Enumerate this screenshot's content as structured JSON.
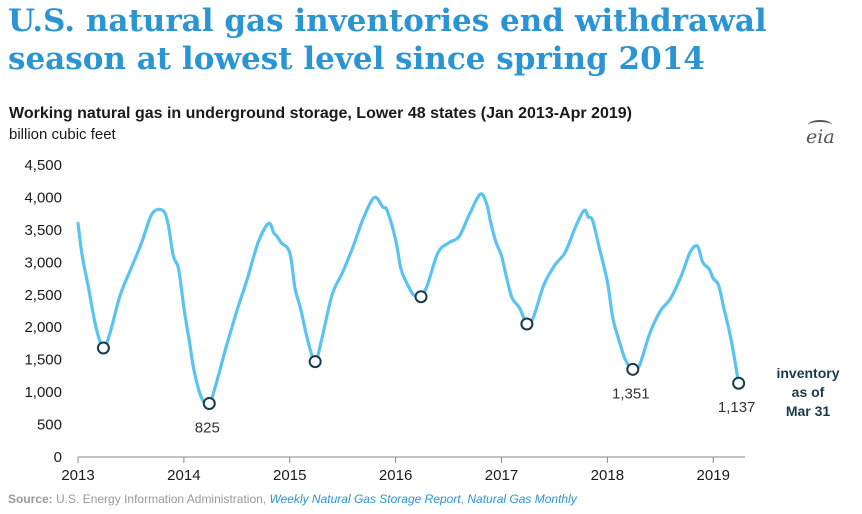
{
  "headline": "U.S. natural gas inventories end withdrawal season at lowest level since spring 2014",
  "logo_text": "eia",
  "source": {
    "label": "Source:",
    "agency": "U.S. Energy Information Administration,",
    "report1": "Weekly Natural Gas Storage Report",
    "separator": ",",
    "report2": "Natural Gas Monthly"
  },
  "colors": {
    "series": "#5bc3f0",
    "headline": "#2b95d3",
    "marker_edge": "#1a3a4a"
  },
  "chart_data": {
    "type": "line",
    "title": "Working natural gas in underground storage, Lower 48 states (Jan 2013-Apr 2019)",
    "ylabel": "billion cubic feet",
    "xlabel": "",
    "xlim": [
      2013,
      2019.3
    ],
    "ylim": [
      0,
      4500
    ],
    "y_ticks": [
      0,
      500,
      1000,
      1500,
      2000,
      2500,
      3000,
      3500,
      4000,
      4500
    ],
    "y_tick_labels": [
      "0",
      "500",
      "1,000",
      "1,500",
      "2,000",
      "2,500",
      "3,000",
      "3,500",
      "4,000",
      "4,500"
    ],
    "x_ticks": [
      2013,
      2014,
      2015,
      2016,
      2017,
      2018,
      2019
    ],
    "x_tick_labels": [
      "2013",
      "2014",
      "2015",
      "2016",
      "2017",
      "2018",
      "2019"
    ],
    "grid": false,
    "series": [
      {
        "name": "Working gas in storage",
        "x": [
          2013.0,
          2013.04,
          2013.1,
          2013.17,
          2013.24,
          2013.3,
          2013.4,
          2013.5,
          2013.6,
          2013.7,
          2013.8,
          2013.85,
          2013.9,
          2013.95,
          2014.0,
          2014.05,
          2014.1,
          2014.17,
          2014.24,
          2014.3,
          2014.4,
          2014.5,
          2014.6,
          2014.7,
          2014.8,
          2014.85,
          2014.88,
          2014.92,
          2015.0,
          2015.05,
          2015.1,
          2015.17,
          2015.24,
          2015.3,
          2015.4,
          2015.5,
          2015.6,
          2015.7,
          2015.8,
          2015.88,
          2015.92,
          2016.0,
          2016.05,
          2016.1,
          2016.17,
          2016.24,
          2016.3,
          2016.4,
          2016.5,
          2016.6,
          2016.7,
          2016.8,
          2016.86,
          2016.9,
          2016.95,
          2017.0,
          2017.05,
          2017.1,
          2017.17,
          2017.24,
          2017.3,
          2017.4,
          2017.5,
          2017.6,
          2017.7,
          2017.78,
          2017.82,
          2017.86,
          2017.92,
          2018.0,
          2018.05,
          2018.1,
          2018.17,
          2018.24,
          2018.3,
          2018.4,
          2018.5,
          2018.6,
          2018.7,
          2018.78,
          2018.85,
          2018.9,
          2018.96,
          2019.0,
          2019.05,
          2019.1,
          2019.17,
          2019.24
        ],
        "values": [
          3600,
          3100,
          2600,
          2000,
          1680,
          1900,
          2500,
          2900,
          3300,
          3750,
          3800,
          3600,
          3100,
          2900,
          2300,
          1800,
          1300,
          900,
          825,
          1100,
          1700,
          2250,
          2750,
          3300,
          3600,
          3450,
          3400,
          3300,
          3150,
          2600,
          2300,
          1800,
          1470,
          1800,
          2500,
          2850,
          3250,
          3700,
          4000,
          3850,
          3800,
          3350,
          2900,
          2700,
          2500,
          2470,
          2650,
          3150,
          3300,
          3400,
          3750,
          4050,
          3900,
          3600,
          3300,
          3100,
          2750,
          2450,
          2300,
          2050,
          2150,
          2650,
          2950,
          3150,
          3550,
          3800,
          3700,
          3650,
          3250,
          2700,
          2150,
          1850,
          1500,
          1351,
          1400,
          1900,
          2250,
          2450,
          2800,
          3150,
          3250,
          3000,
          2900,
          2750,
          2650,
          2300,
          1800,
          1137
        ]
      }
    ],
    "markers": [
      {
        "x": 2013.24,
        "value": 1680,
        "label": ""
      },
      {
        "x": 2014.24,
        "value": 825,
        "label": "825"
      },
      {
        "x": 2015.24,
        "value": 1470,
        "label": ""
      },
      {
        "x": 2016.24,
        "value": 2470,
        "label": ""
      },
      {
        "x": 2017.24,
        "value": 2050,
        "label": ""
      },
      {
        "x": 2018.24,
        "value": 1351,
        "label": "1,351"
      },
      {
        "x": 2019.24,
        "value": 1137,
        "label": "1,137"
      }
    ],
    "annotation": [
      "inventory",
      "as of",
      "Mar 31"
    ]
  }
}
